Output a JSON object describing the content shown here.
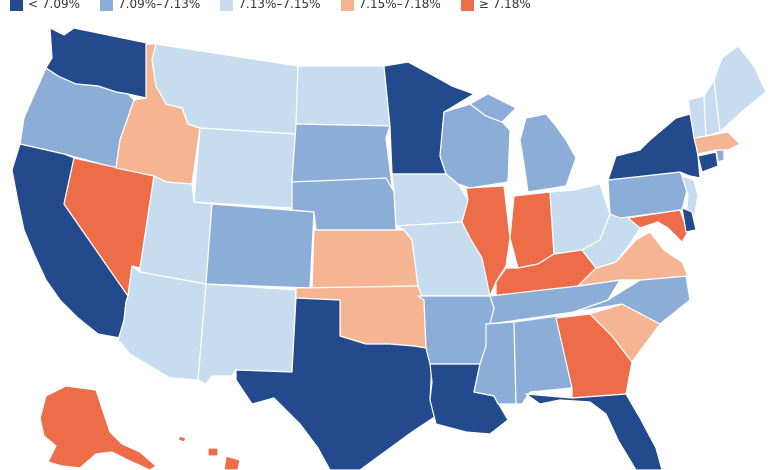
{
  "legend": {
    "bins": [
      {
        "label": "< 7.09%",
        "color": "#234a8c"
      },
      {
        "label": "7.09%–7.13%",
        "color": "#8badd7"
      },
      {
        "label": "7.13%–7.15%",
        "color": "#c7ddef"
      },
      {
        "label": "7.15%–7.18%",
        "color": "#f5b592"
      },
      {
        "label": "≥ 7.18%",
        "color": "#ec6d48"
      }
    ]
  },
  "states": {
    "WA": 0,
    "OR": 1,
    "CA": 0,
    "NV": 4,
    "ID": 3,
    "MT": 2,
    "WY": 2,
    "UT": 2,
    "AZ": 2,
    "CO": 1,
    "NM": 2,
    "ND": 2,
    "SD": 1,
    "NE": 1,
    "KS": 3,
    "OK": 3,
    "TX": 0,
    "MN": 0,
    "IA": 2,
    "MO": 2,
    "AR": 1,
    "LA": 0,
    "WI": 1,
    "IL": 4,
    "MI": 1,
    "IN": 4,
    "OH": 2,
    "KY": 4,
    "TN": 1,
    "MS": 1,
    "AL": 1,
    "GA": 4,
    "FL": 0,
    "SC": 3,
    "NC": 1,
    "VA": 3,
    "WV": 2,
    "PA": 1,
    "NY": 0,
    "NJ": 2,
    "DE": 0,
    "MD": 4,
    "CT": 0,
    "RI": 1,
    "MA": 3,
    "VT": 2,
    "NH": 2,
    "ME": 2,
    "AK": 4,
    "HI": 4
  }
}
